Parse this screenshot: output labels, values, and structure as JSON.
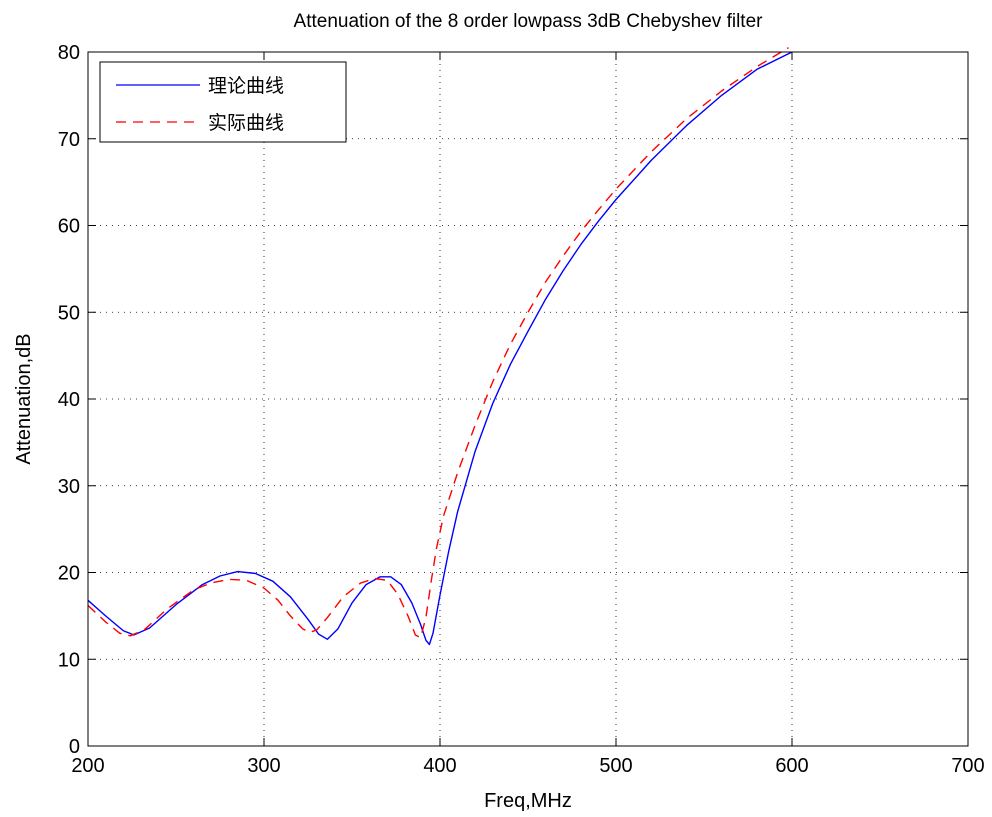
{
  "chart_data": {
    "type": "line",
    "title": "Attenuation of the 8 order lowpass 3dB Chebyshev filter",
    "xlabel": "Freq,MHz",
    "ylabel": "Attenuation,dB",
    "xlim": [
      200,
      700
    ],
    "ylim": [
      0,
      80
    ],
    "xticks": [
      200,
      300,
      400,
      500,
      600,
      700
    ],
    "yticks": [
      0,
      10,
      20,
      30,
      40,
      50,
      60,
      70,
      80
    ],
    "xtick_labels": [
      "200",
      "300",
      "400",
      "500",
      "600",
      "700"
    ],
    "ytick_labels": [
      "0",
      "10",
      "20",
      "30",
      "40",
      "50",
      "60",
      "70",
      "80"
    ],
    "grid": true,
    "legend_position": "top-left",
    "series": [
      {
        "name": "理论曲线",
        "color": "#0000ff",
        "style": "solid",
        "points": [
          [
            200,
            16.8
          ],
          [
            210,
            15.0
          ],
          [
            220,
            13.3
          ],
          [
            226,
            12.8
          ],
          [
            235,
            13.6
          ],
          [
            250,
            16.3
          ],
          [
            265,
            18.6
          ],
          [
            275,
            19.6
          ],
          [
            285,
            20.1
          ],
          [
            295,
            19.9
          ],
          [
            305,
            19.0
          ],
          [
            315,
            17.2
          ],
          [
            325,
            14.6
          ],
          [
            331,
            12.9
          ],
          [
            336,
            12.3
          ],
          [
            342,
            13.5
          ],
          [
            350,
            16.5
          ],
          [
            358,
            18.6
          ],
          [
            366,
            19.5
          ],
          [
            372,
            19.5
          ],
          [
            378,
            18.6
          ],
          [
            384,
            16.5
          ],
          [
            389,
            14.0
          ],
          [
            392,
            12.2
          ],
          [
            394,
            11.7
          ],
          [
            396,
            13.0
          ],
          [
            400,
            17.4
          ],
          [
            405,
            22.5
          ],
          [
            410,
            27.0
          ],
          [
            420,
            34.0
          ],
          [
            430,
            39.5
          ],
          [
            440,
            44.0
          ],
          [
            450,
            47.8
          ],
          [
            460,
            51.5
          ],
          [
            470,
            54.8
          ],
          [
            480,
            57.8
          ],
          [
            490,
            60.5
          ],
          [
            500,
            63.0
          ],
          [
            520,
            67.5
          ],
          [
            540,
            71.5
          ],
          [
            560,
            75.0
          ],
          [
            580,
            78.0
          ],
          [
            600,
            80.0
          ]
        ]
      },
      {
        "name": "实际曲线",
        "color": "#ff0000",
        "style": "dashed",
        "points": [
          [
            200,
            16.2
          ],
          [
            210,
            14.3
          ],
          [
            218,
            13.0
          ],
          [
            224,
            12.7
          ],
          [
            232,
            13.4
          ],
          [
            245,
            15.8
          ],
          [
            260,
            18.0
          ],
          [
            270,
            18.8
          ],
          [
            280,
            19.2
          ],
          [
            290,
            19.1
          ],
          [
            300,
            18.2
          ],
          [
            308,
            16.8
          ],
          [
            315,
            15.0
          ],
          [
            322,
            13.5
          ],
          [
            326,
            13.1
          ],
          [
            330,
            13.4
          ],
          [
            336,
            14.8
          ],
          [
            345,
            17.2
          ],
          [
            355,
            18.8
          ],
          [
            363,
            19.3
          ],
          [
            370,
            19.1
          ],
          [
            376,
            17.5
          ],
          [
            382,
            14.9
          ],
          [
            386,
            12.8
          ],
          [
            389,
            12.5
          ],
          [
            392,
            14.8
          ],
          [
            395,
            19.0
          ],
          [
            398,
            22.8
          ],
          [
            402,
            26.5
          ],
          [
            410,
            31.5
          ],
          [
            420,
            37.0
          ],
          [
            430,
            42.0
          ],
          [
            440,
            46.3
          ],
          [
            450,
            50.0
          ],
          [
            460,
            53.5
          ],
          [
            470,
            56.5
          ],
          [
            480,
            59.3
          ],
          [
            490,
            61.8
          ],
          [
            500,
            64.2
          ],
          [
            520,
            68.5
          ],
          [
            540,
            72.3
          ],
          [
            560,
            75.5
          ],
          [
            580,
            78.3
          ],
          [
            598,
            80.5
          ]
        ]
      }
    ]
  }
}
